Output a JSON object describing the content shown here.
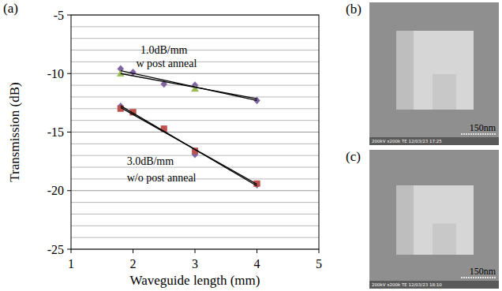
{
  "chart_data": {
    "type": "scatter",
    "panel_label": "(a)",
    "x_label": "Waveguide length (mm)",
    "y_label": "Transmission (dB)",
    "xlim": [
      1,
      5
    ],
    "ylim": [
      -25,
      -5
    ],
    "xticks": [
      1,
      2,
      3,
      4,
      5
    ],
    "yticks": [
      -25,
      -20,
      -15,
      -10,
      -5
    ],
    "grid": true,
    "series": [
      {
        "type": "scatter",
        "marker": "diamond",
        "color": "#8064a2",
        "x": [
          1.8,
          2.0,
          2.5,
          3.0,
          4.0
        ],
        "values": [
          -9.6,
          -9.9,
          -10.9,
          -11.0,
          -12.3
        ]
      },
      {
        "type": "scatter",
        "marker": "triangle",
        "color": "#9bbb59",
        "x": [
          1.8,
          3.0
        ],
        "values": [
          -10.0,
          -11.3
        ]
      },
      {
        "type": "line",
        "marker": "none",
        "color": "#000000",
        "x": [
          1.8,
          4.0
        ],
        "values": [
          -9.75,
          -12.3
        ]
      },
      {
        "type": "line",
        "marker": "none",
        "color": "#000000",
        "x": [
          1.8,
          4.0
        ],
        "values": [
          -10.0,
          -12.15
        ]
      },
      {
        "type": "scatter",
        "marker": "diamond",
        "color": "#8064a2",
        "x": [
          1.8,
          3.0,
          4.0
        ],
        "values": [
          -12.8,
          -16.9,
          -19.5
        ]
      },
      {
        "type": "scatter",
        "marker": "square",
        "color": "#c0504d",
        "x": [
          1.8,
          2.0,
          2.5,
          3.0,
          4.0
        ],
        "values": [
          -13.0,
          -13.3,
          -14.7,
          -16.6,
          -19.4
        ]
      },
      {
        "type": "line",
        "marker": "none",
        "color": "#000000",
        "x": [
          1.8,
          4.0
        ],
        "values": [
          -12.75,
          -19.6
        ]
      },
      {
        "type": "line",
        "marker": "none",
        "color": "#000000",
        "x": [
          1.8,
          4.0
        ],
        "values": [
          -12.9,
          -19.45
        ]
      }
    ],
    "annotations": [
      {
        "text": "1.0dB/mm",
        "x": 2.12,
        "y": -8.3
      },
      {
        "text": "w post anneal",
        "x": 2.05,
        "y": -9.45
      },
      {
        "text": "3.0dB/mm",
        "x": 1.9,
        "y": -17.8
      },
      {
        "text": "w/o post anneal",
        "x": 1.9,
        "y": -19.2
      }
    ]
  },
  "images": [
    {
      "panel_label": "(b)",
      "scale_bar": "150nm",
      "footer": "200kV x200k TE 12/03/23 17:25"
    },
    {
      "panel_label": "(c)",
      "scale_bar": "150nm",
      "footer": "200kV x200k TE 12/03/23 18:10"
    }
  ]
}
